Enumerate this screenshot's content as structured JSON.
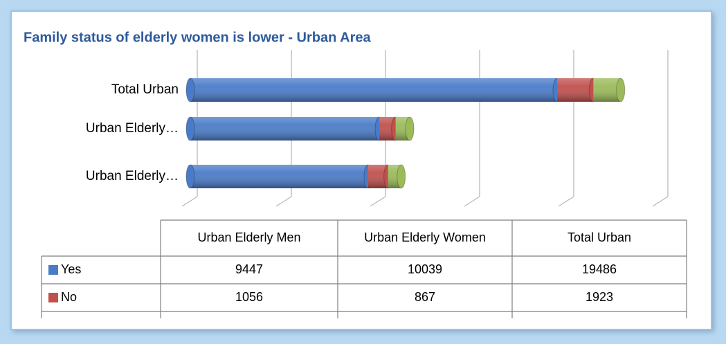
{
  "chart_data": {
    "type": "bar3d_stacked_horizontal",
    "title": "Family status of elderly women is lower  - Urban Area",
    "categories": [
      "Urban Elderly Men",
      "Urban Elderly Women",
      "Total Urban"
    ],
    "category_axis_labels": [
      "Urban Elderly…",
      "Urban Elderly…",
      "Total Urban"
    ],
    "series": [
      {
        "name": "Yes",
        "color": "#4a7bc8",
        "values": [
          9447,
          10039,
          19486
        ]
      },
      {
        "name": "No",
        "color": "#c0504d",
        "values": [
          1056,
          867,
          1923
        ]
      },
      {
        "color": "#9bbb59",
        "values": [
          700,
          750,
          1450
        ]
      }
    ],
    "xlim": [
      0,
      25000
    ],
    "xticks": [
      0,
      5000,
      10000,
      15000,
      20000,
      25000
    ],
    "grid": true
  }
}
